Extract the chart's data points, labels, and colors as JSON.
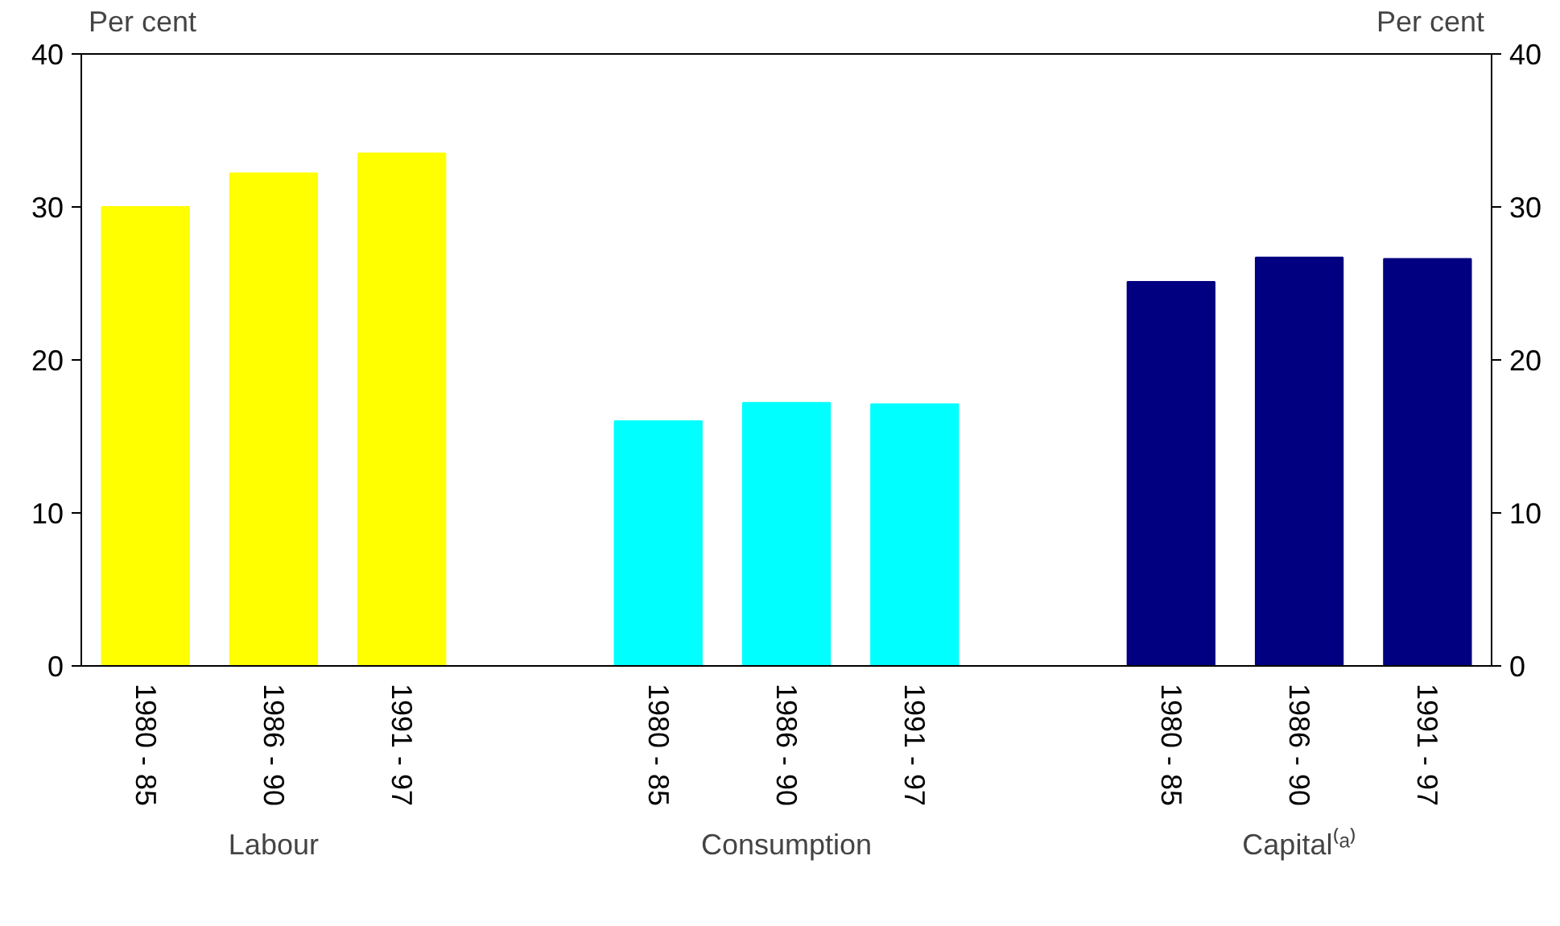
{
  "chart_data": {
    "type": "bar",
    "categories": [
      "1980 - 85",
      "1986 - 90",
      "1991 - 97",
      null,
      "1980 - 85",
      "1986 - 90",
      "1991 - 97",
      null,
      "1980 - 85",
      "1986 - 90",
      "1991 - 97"
    ],
    "values": [
      30.0,
      32.2,
      33.5,
      null,
      16.0,
      17.2,
      17.1,
      null,
      25.1,
      26.7,
      26.6
    ],
    "colors": [
      "#ffff00",
      "#ffff00",
      "#ffff00",
      null,
      "#00ffff",
      "#00ffff",
      "#00ffff",
      null,
      "#000080",
      "#000080",
      "#000080"
    ],
    "ylabel": "Per cent",
    "y2label": "Per cent",
    "ylim": [
      0,
      40
    ],
    "yticks": [
      0,
      10,
      20,
      30,
      40
    ],
    "y2lim": [
      0,
      40
    ],
    "y2ticks": [
      0,
      10,
      20,
      30,
      40
    ],
    "annotations": [
      "Labour",
      "Consumption",
      "Capital⁽ᵃ⁾"
    ],
    "grid": false
  }
}
